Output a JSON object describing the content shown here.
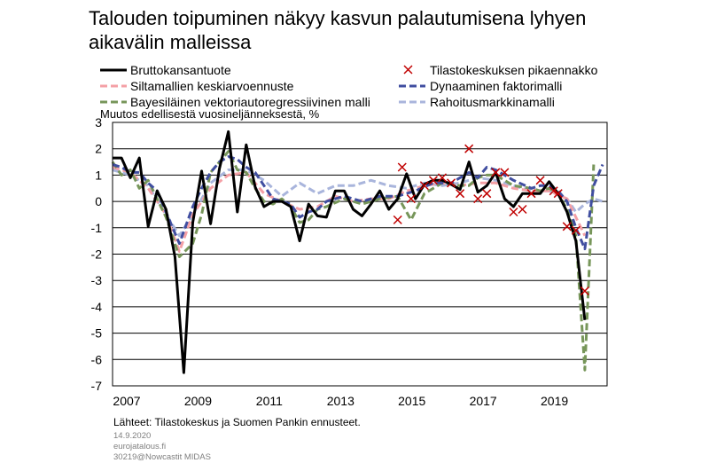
{
  "chart_data": {
    "type": "line",
    "title_lines": [
      "Talouden toipuminen näkyy kasvun palautumisena lyhyen",
      "aikavälin malleissa"
    ],
    "ylabel": "Muutos edellisestä vuosineljänneksestä,  %",
    "ylim": [
      -7,
      3
    ],
    "yticks": [
      "3",
      "2",
      "1",
      "0",
      "-1",
      "-2",
      "-3",
      "-4",
      "-5",
      "-6",
      "-7"
    ],
    "xlim": [
      2007,
      2020.875
    ],
    "xticks": [
      "2007",
      "2009",
      "2011",
      "2013",
      "2015",
      "2017",
      "2019"
    ],
    "grid": "horizontal",
    "legend_position": "top",
    "series": [
      {
        "name": "Bruttokansantuote",
        "color": "#000000",
        "style": "solid",
        "points": [
          [
            2007.0,
            1.65
          ],
          [
            2007.25,
            1.65
          ],
          [
            2007.5,
            0.9
          ],
          [
            2007.75,
            1.65
          ],
          [
            2008.0,
            -0.95
          ],
          [
            2008.25,
            0.4
          ],
          [
            2008.5,
            -0.3
          ],
          [
            2008.75,
            -2.1
          ],
          [
            2009.0,
            -6.5
          ],
          [
            2009.25,
            -0.8
          ],
          [
            2009.5,
            1.15
          ],
          [
            2009.75,
            -0.85
          ],
          [
            2010.0,
            1.25
          ],
          [
            2010.25,
            2.65
          ],
          [
            2010.5,
            -0.4
          ],
          [
            2010.75,
            2.15
          ],
          [
            2011.0,
            0.55
          ],
          [
            2011.25,
            -0.2
          ],
          [
            2011.5,
            0.0
          ],
          [
            2011.75,
            0.0
          ],
          [
            2012.0,
            -0.2
          ],
          [
            2012.25,
            -1.5
          ],
          [
            2012.5,
            -0.1
          ],
          [
            2012.75,
            -0.55
          ],
          [
            2013.0,
            -0.6
          ],
          [
            2013.25,
            0.4
          ],
          [
            2013.5,
            0.4
          ],
          [
            2013.75,
            -0.3
          ],
          [
            2014.0,
            -0.55
          ],
          [
            2014.25,
            -0.1
          ],
          [
            2014.5,
            0.4
          ],
          [
            2014.75,
            -0.3
          ],
          [
            2015.0,
            0.1
          ],
          [
            2015.25,
            1.05
          ],
          [
            2015.5,
            0.1
          ],
          [
            2015.75,
            0.65
          ],
          [
            2016.0,
            0.8
          ],
          [
            2016.25,
            0.8
          ],
          [
            2016.5,
            0.65
          ],
          [
            2016.75,
            0.45
          ],
          [
            2017.0,
            1.5
          ],
          [
            2017.25,
            0.35
          ],
          [
            2017.5,
            0.6
          ],
          [
            2017.75,
            1.1
          ],
          [
            2018.0,
            0.1
          ],
          [
            2018.25,
            -0.2
          ],
          [
            2018.5,
            0.3
          ],
          [
            2018.75,
            0.3
          ],
          [
            2019.0,
            0.3
          ],
          [
            2019.25,
            0.75
          ],
          [
            2019.5,
            0.3
          ],
          [
            2019.75,
            -0.4
          ],
          [
            2020.0,
            -1.5
          ],
          [
            2020.25,
            -4.5
          ]
        ]
      },
      {
        "name": "Tilastokeskuksen pikaennakko",
        "color": "#c00000",
        "style": "markers",
        "points": [
          [
            2015.0,
            -0.7
          ],
          [
            2015.125,
            1.3
          ],
          [
            2015.375,
            0.1
          ],
          [
            2015.75,
            0.6
          ],
          [
            2016.0,
            0.8
          ],
          [
            2016.25,
            0.9
          ],
          [
            2016.5,
            0.7
          ],
          [
            2016.75,
            0.3
          ],
          [
            2017.0,
            2.0
          ],
          [
            2017.25,
            0.1
          ],
          [
            2017.5,
            0.3
          ],
          [
            2017.75,
            1.1
          ],
          [
            2018.0,
            1.1
          ],
          [
            2018.25,
            -0.4
          ],
          [
            2018.5,
            -0.3
          ],
          [
            2018.75,
            0.3
          ],
          [
            2019.0,
            0.8
          ],
          [
            2019.375,
            0.4
          ],
          [
            2019.5,
            0.3
          ],
          [
            2019.75,
            -0.95
          ],
          [
            2020.0,
            -1.1
          ],
          [
            2020.25,
            -3.4
          ]
        ]
      },
      {
        "name": "Siltamallien keskiarvoennuste",
        "color": "#f4a0a6",
        "style": "dashed",
        "points": [
          [
            2007.0,
            1.3
          ],
          [
            2007.5,
            1.1
          ],
          [
            2008.0,
            0.5
          ],
          [
            2008.5,
            -0.5
          ],
          [
            2008.875,
            -1.9
          ],
          [
            2009.25,
            -0.5
          ],
          [
            2009.75,
            0.5
          ],
          [
            2010.25,
            1.0
          ],
          [
            2010.75,
            1.1
          ],
          [
            2011.25,
            0.3
          ],
          [
            2011.75,
            0.0
          ],
          [
            2012.25,
            -0.3
          ],
          [
            2012.75,
            -0.2
          ],
          [
            2013.25,
            0.2
          ],
          [
            2013.75,
            0.0
          ],
          [
            2014.25,
            0.1
          ],
          [
            2014.75,
            0.1
          ],
          [
            2015.25,
            0.4
          ],
          [
            2015.75,
            0.6
          ],
          [
            2016.25,
            0.7
          ],
          [
            2016.75,
            0.6
          ],
          [
            2017.25,
            0.7
          ],
          [
            2017.75,
            0.7
          ],
          [
            2018.25,
            0.5
          ],
          [
            2018.75,
            0.4
          ],
          [
            2019.25,
            0.4
          ],
          [
            2019.75,
            0.1
          ],
          [
            2020.0,
            -0.6
          ],
          [
            2020.25,
            -1.3
          ]
        ]
      },
      {
        "name": "Dynaaminen faktorimalli",
        "color": "#404ea0",
        "style": "dashed",
        "points": [
          [
            2007.0,
            1.4
          ],
          [
            2007.25,
            1.3
          ],
          [
            2007.5,
            1.1
          ],
          [
            2007.75,
            1.1
          ],
          [
            2008.0,
            0.7
          ],
          [
            2008.25,
            0.4
          ],
          [
            2008.5,
            -0.4
          ],
          [
            2008.875,
            -1.6
          ],
          [
            2009.25,
            -0.2
          ],
          [
            2009.5,
            0.5
          ],
          [
            2009.75,
            1.1
          ],
          [
            2010.0,
            1.5
          ],
          [
            2010.25,
            1.7
          ],
          [
            2010.5,
            1.6
          ],
          [
            2010.75,
            1.3
          ],
          [
            2011.0,
            1.1
          ],
          [
            2011.25,
            0.6
          ],
          [
            2011.5,
            0.1
          ],
          [
            2011.75,
            0.0
          ],
          [
            2012.0,
            -0.1
          ],
          [
            2012.25,
            -0.6
          ],
          [
            2012.5,
            -0.4
          ],
          [
            2012.75,
            -0.3
          ],
          [
            2013.0,
            0.0
          ],
          [
            2013.5,
            0.2
          ],
          [
            2014.0,
            0.0
          ],
          [
            2014.5,
            0.2
          ],
          [
            2015.0,
            0.2
          ],
          [
            2015.5,
            0.4
          ],
          [
            2016.0,
            0.7
          ],
          [
            2016.5,
            0.7
          ],
          [
            2017.0,
            1.1
          ],
          [
            2017.25,
            0.9
          ],
          [
            2017.5,
            1.3
          ],
          [
            2017.75,
            1.2
          ],
          [
            2018.25,
            0.8
          ],
          [
            2018.75,
            0.5
          ],
          [
            2019.0,
            0.6
          ],
          [
            2019.25,
            0.6
          ],
          [
            2019.5,
            0.4
          ],
          [
            2019.75,
            0.0
          ],
          [
            2020.0,
            -1.0
          ],
          [
            2020.25,
            -1.8
          ],
          [
            2020.5,
            0.6
          ],
          [
            2020.75,
            1.4
          ]
        ]
      },
      {
        "name": "Bayesiläinen vektoriautoregressiivinen malli",
        "color": "#77965a",
        "style": "dashed",
        "points": [
          [
            2007.0,
            1.5
          ],
          [
            2007.25,
            1.0
          ],
          [
            2007.5,
            1.2
          ],
          [
            2007.75,
            0.5
          ],
          [
            2008.0,
            0.8
          ],
          [
            2008.25,
            0.1
          ],
          [
            2008.5,
            -0.6
          ],
          [
            2008.875,
            -2.1
          ],
          [
            2009.25,
            -1.6
          ],
          [
            2009.5,
            -0.5
          ],
          [
            2009.75,
            1.1
          ],
          [
            2010.0,
            1.5
          ],
          [
            2010.25,
            1.9
          ],
          [
            2010.5,
            1.2
          ],
          [
            2010.75,
            1.1
          ],
          [
            2011.0,
            0.5
          ],
          [
            2011.25,
            0.0
          ],
          [
            2011.5,
            -0.1
          ],
          [
            2011.75,
            0.1
          ],
          [
            2012.0,
            -0.2
          ],
          [
            2012.25,
            -0.8
          ],
          [
            2012.5,
            -0.7
          ],
          [
            2012.75,
            -0.3
          ],
          [
            2013.0,
            -0.2
          ],
          [
            2013.5,
            0.1
          ],
          [
            2014.0,
            -0.1
          ],
          [
            2014.5,
            0.1
          ],
          [
            2015.0,
            0.2
          ],
          [
            2015.375,
            -0.7
          ],
          [
            2015.75,
            0.3
          ],
          [
            2016.25,
            0.7
          ],
          [
            2016.75,
            0.6
          ],
          [
            2017.0,
            0.6
          ],
          [
            2017.25,
            0.9
          ],
          [
            2017.5,
            1.0
          ],
          [
            2017.75,
            1.0
          ],
          [
            2018.25,
            0.6
          ],
          [
            2018.75,
            0.5
          ],
          [
            2019.0,
            0.4
          ],
          [
            2019.25,
            0.5
          ],
          [
            2019.5,
            0.3
          ],
          [
            2019.75,
            -0.3
          ],
          [
            2020.0,
            -1.3
          ],
          [
            2020.25,
            -6.4
          ],
          [
            2020.5,
            1.4
          ]
        ]
      },
      {
        "name": "Rahoitusmarkkinamalli",
        "color": "#a9b5dc",
        "style": "dashed",
        "points": [
          [
            2007.0,
            1.2
          ],
          [
            2007.5,
            1.0
          ],
          [
            2008.0,
            0.6
          ],
          [
            2008.5,
            -0.5
          ],
          [
            2008.875,
            -1.3
          ],
          [
            2009.25,
            -0.5
          ],
          [
            2009.75,
            0.7
          ],
          [
            2010.25,
            1.2
          ],
          [
            2010.75,
            1.2
          ],
          [
            2011.25,
            0.8
          ],
          [
            2011.75,
            0.2
          ],
          [
            2012.25,
            0.7
          ],
          [
            2012.75,
            0.3
          ],
          [
            2013.25,
            0.6
          ],
          [
            2013.75,
            0.6
          ],
          [
            2014.25,
            0.8
          ],
          [
            2014.75,
            0.6
          ],
          [
            2015.25,
            0.5
          ],
          [
            2015.75,
            0.7
          ],
          [
            2016.25,
            0.6
          ],
          [
            2016.75,
            0.7
          ],
          [
            2017.25,
            0.9
          ],
          [
            2017.75,
            0.8
          ],
          [
            2018.25,
            0.6
          ],
          [
            2018.75,
            0.4
          ],
          [
            2019.25,
            0.4
          ],
          [
            2019.75,
            0.1
          ],
          [
            2020.0,
            -0.4
          ],
          [
            2020.25,
            -0.1
          ],
          [
            2020.5,
            0.1
          ],
          [
            2020.75,
            0.0
          ]
        ]
      }
    ]
  },
  "footer": {
    "source": "Lähteet: Tilastokeskus  ja Suomen Pankin ennusteet.",
    "date": "14.9.2020",
    "site": "eurojatalous.fi",
    "code": "30219@Nowcastit  MIDAS"
  }
}
